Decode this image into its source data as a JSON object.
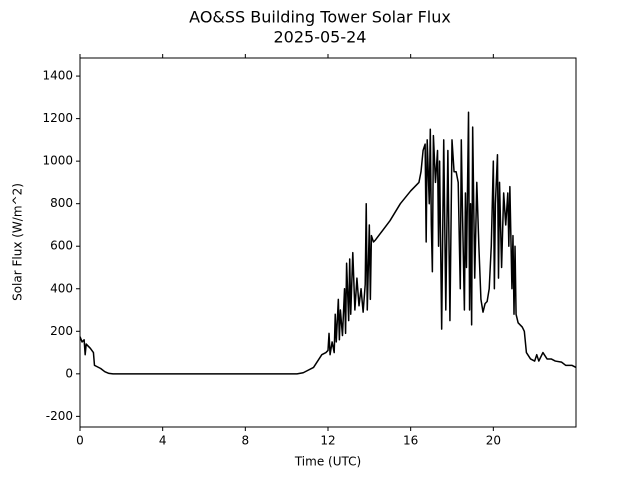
{
  "chart_data": {
    "type": "line",
    "title": "AO&SS Building Tower Solar Flux",
    "subtitle": "2025-05-24",
    "x_label": "Time (UTC)",
    "y_label": "Solar Flux (W/m^2)",
    "xlim": [
      0,
      24
    ],
    "ylim": [
      -250,
      1485
    ],
    "xticks": [
      0,
      4,
      8,
      12,
      16,
      20
    ],
    "yticks": [
      -200,
      0,
      200,
      400,
      600,
      800,
      1000,
      1200,
      1400
    ],
    "series": [
      {
        "color": "#000000",
        "x": [
          0,
          0.1,
          0.2,
          0.25,
          0.3,
          0.5,
          0.65,
          0.7,
          0.8,
          1.0,
          1.2,
          1.4,
          1.6,
          10.5,
          10.8,
          11.0,
          11.3,
          11.5,
          11.7,
          11.9,
          12.0,
          12.05,
          12.1,
          12.2,
          12.3,
          12.35,
          12.4,
          12.5,
          12.55,
          12.6,
          12.7,
          12.8,
          12.85,
          12.9,
          13.0,
          13.05,
          13.1,
          13.2,
          13.3,
          13.4,
          13.5,
          13.6,
          13.7,
          13.8,
          13.85,
          13.9,
          14.0,
          14.05,
          14.1,
          14.2,
          14.3,
          15,
          15.5,
          16,
          16.4,
          16.5,
          16.6,
          16.7,
          16.75,
          16.8,
          16.9,
          16.95,
          17.0,
          17.05,
          17.1,
          17.2,
          17.3,
          17.35,
          17.4,
          17.5,
          17.6,
          17.7,
          17.8,
          17.9,
          18.0,
          18.1,
          18.2,
          18.3,
          18.4,
          18.45,
          18.5,
          18.6,
          18.65,
          18.7,
          18.8,
          18.85,
          18.9,
          18.95,
          19.0,
          19.1,
          19.2,
          19.3,
          19.4,
          19.5,
          19.6,
          19.7,
          19.8,
          19.9,
          20.0,
          20.05,
          20.1,
          20.2,
          20.25,
          20.3,
          20.4,
          20.5,
          20.6,
          20.7,
          20.75,
          20.8,
          20.9,
          20.95,
          21.0,
          21.05,
          21.1,
          21.2,
          21.4,
          21.5,
          21.6,
          21.8,
          22.0,
          22.1,
          22.2,
          22.4,
          22.6,
          22.8,
          23.0,
          23.3,
          23.5,
          23.8,
          24.0
        ],
        "values": [
          175,
          150,
          160,
          90,
          140,
          120,
          100,
          40,
          35,
          25,
          10,
          2,
          0,
          0,
          5,
          15,
          30,
          60,
          90,
          100,
          110,
          190,
          90,
          150,
          100,
          280,
          150,
          350,
          160,
          300,
          180,
          400,
          190,
          520,
          250,
          540,
          280,
          570,
          300,
          450,
          320,
          400,
          290,
          420,
          800,
          300,
          700,
          350,
          650,
          620,
          630,
          720,
          800,
          860,
          900,
          950,
          1050,
          1080,
          620,
          1100,
          800,
          1150,
          700,
          480,
          1120,
          900,
          1050,
          600,
          1000,
          210,
          1100,
          300,
          1050,
          250,
          1100,
          950,
          950,
          900,
          400,
          1100,
          800,
          300,
          850,
          500,
          1230,
          300,
          800,
          230,
          1160,
          450,
          900,
          600,
          350,
          290,
          330,
          340,
          400,
          600,
          1000,
          400,
          800,
          1030,
          450,
          900,
          500,
          850,
          700,
          850,
          600,
          880,
          400,
          650,
          280,
          600,
          280,
          240,
          220,
          200,
          100,
          70,
          60,
          90,
          60,
          100,
          70,
          70,
          60,
          55,
          40,
          40,
          30
        ]
      }
    ]
  }
}
